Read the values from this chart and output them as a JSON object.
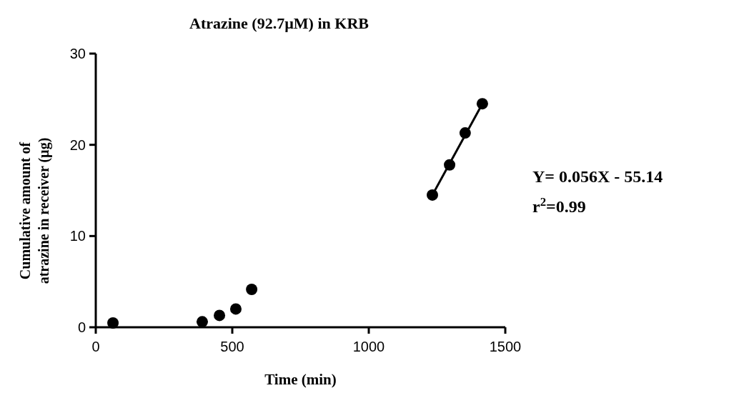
{
  "chart_data": {
    "type": "scatter",
    "title": "Atrazine (92.7µM) in KRB",
    "xlabel": "Time (min)",
    "ylabel": "Cumulative amount of atrazine in receiver (µg)",
    "series": [
      {
        "color": "#000000",
        "x": [
          63,
          390,
          453,
          513,
          571,
          1233,
          1296,
          1353,
          1416
        ],
        "values": [
          0.47,
          0.6,
          1.3,
          2.0,
          4.15,
          14.5,
          17.8,
          21.3,
          24.5
        ]
      },
      {
        "type": "line",
        "marker": "none",
        "color": "#000000",
        "x": [
          1233,
          1416
        ],
        "values": [
          14.5,
          24.5
        ]
      }
    ],
    "xlim": [
      0,
      1500
    ],
    "xticks": [
      0,
      500,
      1000,
      1500
    ],
    "ylim": [
      0,
      30
    ],
    "yticks": [
      0,
      10,
      20,
      30
    ],
    "grid": false,
    "marker": "circle",
    "annotations": [
      "Y= 0.056X - 55.14",
      "r$^{2}$=0.99"
    ]
  }
}
